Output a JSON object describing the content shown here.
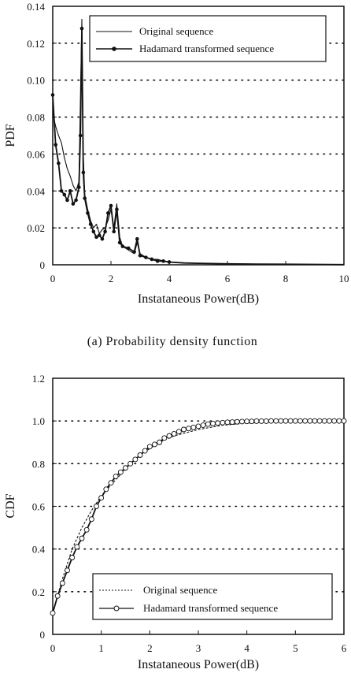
{
  "chart_data": [
    {
      "type": "line",
      "caption": "(a) Probability density function",
      "xlabel": "Instataneous Power(dB)",
      "ylabel": "PDF",
      "xlim": [
        0,
        10
      ],
      "ylim": [
        0,
        0.14
      ],
      "xticks": [
        "0",
        "2",
        "4",
        "6",
        "8",
        "10"
      ],
      "yticks": [
        "0",
        "0.02",
        "0.04",
        "0.06",
        "0.08",
        "0.10",
        "0.12",
        "0.14"
      ],
      "grid": "horizontal dotted",
      "legend_position": "top-right",
      "series": [
        {
          "name": "Original sequence",
          "marker": "none",
          "x": [
            0,
            0.1,
            0.2,
            0.3,
            0.4,
            0.5,
            0.6,
            0.7,
            0.8,
            0.9,
            0.95,
            1.0,
            1.05,
            1.1,
            1.2,
            1.3,
            1.4,
            1.5,
            1.6,
            1.7,
            1.8,
            1.9,
            2.0,
            2.1,
            2.2,
            2.3,
            2.4,
            2.6,
            2.8,
            2.9,
            3.0,
            3.2,
            3.4,
            3.6,
            3.8,
            4.0,
            4.5,
            5,
            6,
            7,
            8,
            9,
            10
          ],
          "y": [
            0.082,
            0.075,
            0.07,
            0.066,
            0.058,
            0.052,
            0.048,
            0.043,
            0.04,
            0.045,
            0.09,
            0.133,
            0.06,
            0.038,
            0.03,
            0.024,
            0.02,
            0.022,
            0.017,
            0.019,
            0.02,
            0.024,
            0.03,
            0.02,
            0.033,
            0.015,
            0.01,
            0.008,
            0.006,
            0.012,
            0.006,
            0.004,
            0.003,
            0.003,
            0.002,
            0.0015,
            0.001,
            0.0008,
            0.0005,
            0.0004,
            0.0003,
            0.0002,
            0.0001
          ]
        },
        {
          "name": "Hadamard transformed sequence",
          "marker": "dot",
          "x": [
            0,
            0.1,
            0.2,
            0.3,
            0.4,
            0.5,
            0.6,
            0.7,
            0.8,
            0.9,
            0.95,
            1.0,
            1.05,
            1.1,
            1.2,
            1.3,
            1.4,
            1.5,
            1.6,
            1.7,
            1.8,
            1.9,
            2.0,
            2.1,
            2.2,
            2.3,
            2.4,
            2.6,
            2.8,
            2.9,
            3.0,
            3.2,
            3.4,
            3.6,
            3.8,
            4.0,
            4.5,
            5,
            6,
            7,
            8,
            9,
            10
          ],
          "y": [
            0.092,
            0.065,
            0.055,
            0.04,
            0.038,
            0.035,
            0.04,
            0.033,
            0.035,
            0.042,
            0.07,
            0.128,
            0.05,
            0.036,
            0.028,
            0.022,
            0.018,
            0.015,
            0.016,
            0.014,
            0.018,
            0.028,
            0.032,
            0.018,
            0.03,
            0.012,
            0.01,
            0.009,
            0.007,
            0.014,
            0.005,
            0.004,
            0.003,
            0.002,
            0.002,
            0.0015,
            0.001,
            0.0008,
            0.0005,
            0.0004,
            0.0003,
            0.0002,
            0.0001
          ]
        }
      ]
    },
    {
      "type": "line",
      "xlabel": "Instataneous Power(dB)",
      "ylabel": "CDF",
      "xlim": [
        0,
        6
      ],
      "ylim": [
        0,
        1.2
      ],
      "xticks": [
        "0",
        "1",
        "2",
        "3",
        "4",
        "5",
        "6"
      ],
      "yticks": [
        "0",
        "0.2",
        "0.4",
        "0.6",
        "0.8",
        "1.0",
        "1.2"
      ],
      "grid": "horizontal dotted",
      "legend_position": "bottom-right",
      "series": [
        {
          "name": "Original sequence",
          "marker": "none",
          "x": [
            0,
            0.2,
            0.4,
            0.6,
            0.8,
            1.0,
            1.2,
            1.4,
            1.6,
            1.8,
            2.0,
            2.2,
            2.5,
            3.0,
            3.5,
            4.0,
            4.5,
            5.0,
            5.5,
            6.0
          ],
          "y": [
            0.1,
            0.26,
            0.4,
            0.5,
            0.58,
            0.65,
            0.7,
            0.75,
            0.8,
            0.84,
            0.87,
            0.9,
            0.93,
            0.96,
            0.98,
            0.99,
            0.995,
            0.998,
            0.999,
            1.0
          ]
        },
        {
          "name": "Hadamard transformed sequence",
          "marker": "circle",
          "x": [
            0,
            0.1,
            0.2,
            0.3,
            0.4,
            0.5,
            0.6,
            0.7,
            0.8,
            0.9,
            1.0,
            1.1,
            1.2,
            1.3,
            1.4,
            1.5,
            1.6,
            1.7,
            1.8,
            1.9,
            2.0,
            2.1,
            2.2,
            2.3,
            2.4,
            2.5,
            2.6,
            2.7,
            2.8,
            2.9,
            3.0,
            3.1,
            3.2,
            3.3,
            3.4,
            3.5,
            3.6,
            3.7,
            3.8,
            3.9,
            4.0,
            4.1,
            4.2,
            4.3,
            4.4,
            4.5,
            4.6,
            4.7,
            4.8,
            4.9,
            5.0,
            5.1,
            5.2,
            5.3,
            5.4,
            5.5,
            5.6,
            5.7,
            5.8,
            5.9,
            6.0
          ],
          "y": [
            0.1,
            0.18,
            0.24,
            0.3,
            0.36,
            0.41,
            0.45,
            0.49,
            0.54,
            0.6,
            0.64,
            0.68,
            0.71,
            0.74,
            0.76,
            0.78,
            0.8,
            0.82,
            0.84,
            0.86,
            0.88,
            0.89,
            0.9,
            0.92,
            0.93,
            0.94,
            0.95,
            0.96,
            0.965,
            0.97,
            0.975,
            0.98,
            0.985,
            0.988,
            0.99,
            0.992,
            0.994,
            0.995,
            0.996,
            0.997,
            0.998,
            0.998,
            0.999,
            0.999,
            0.999,
            1.0,
            1.0,
            1.0,
            1.0,
            1.0,
            1.0,
            1.0,
            1.0,
            1.0,
            1.0,
            1.0,
            1.0,
            1.0,
            1.0,
            1.0,
            1.0
          ]
        }
      ]
    }
  ]
}
